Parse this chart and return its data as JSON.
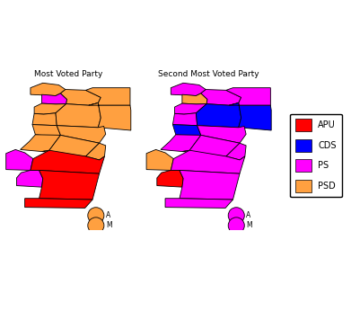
{
  "title1": "Most Voted Party",
  "title2": "Second Most Voted Party",
  "legend_parties": [
    "APU",
    "CDS",
    "PS",
    "PSD"
  ],
  "colors": {
    "APU": "#FF0000",
    "CDS": "#0000FF",
    "PS": "#FF00FF",
    "PSD": "#FFA040"
  },
  "most_voted": {
    "Viana do Castelo": "PSD",
    "Braga": "PS",
    "Vila Real": "PSD",
    "Braganca": "PSD",
    "Porto": "PSD",
    "Aveiro": "PSD",
    "Viseu": "PSD",
    "Guarda": "PSD",
    "Coimbra": "PSD",
    "Castelo Branco": "PSD",
    "Leiria": "PSD",
    "Santarem": "PSD",
    "Lisboa": "PS",
    "Setubal": "PS",
    "Portalegre": "PSD",
    "Evora": "APU",
    "Beja": "APU",
    "Faro": "APU",
    "Azores": "PSD",
    "Madeira": "PSD"
  },
  "second_voted": {
    "Viana do Castelo": "PS",
    "Braga": "PSD",
    "Vila Real": "PS",
    "Braganca": "PS",
    "Porto": "PS",
    "Aveiro": "PS",
    "Viseu": "CDS",
    "Guarda": "CDS",
    "Coimbra": "CDS",
    "Castelo Branco": "PS",
    "Leiria": "PS",
    "Santarem": "PS",
    "Lisboa": "PSD",
    "Setubal": "APU",
    "Portalegre": "PS",
    "Evora": "PS",
    "Beja": "PS",
    "Faro": "PS",
    "Azores": "PS",
    "Madeira": "PS"
  },
  "background": "#FFFFFF",
  "border_color": "#000000"
}
